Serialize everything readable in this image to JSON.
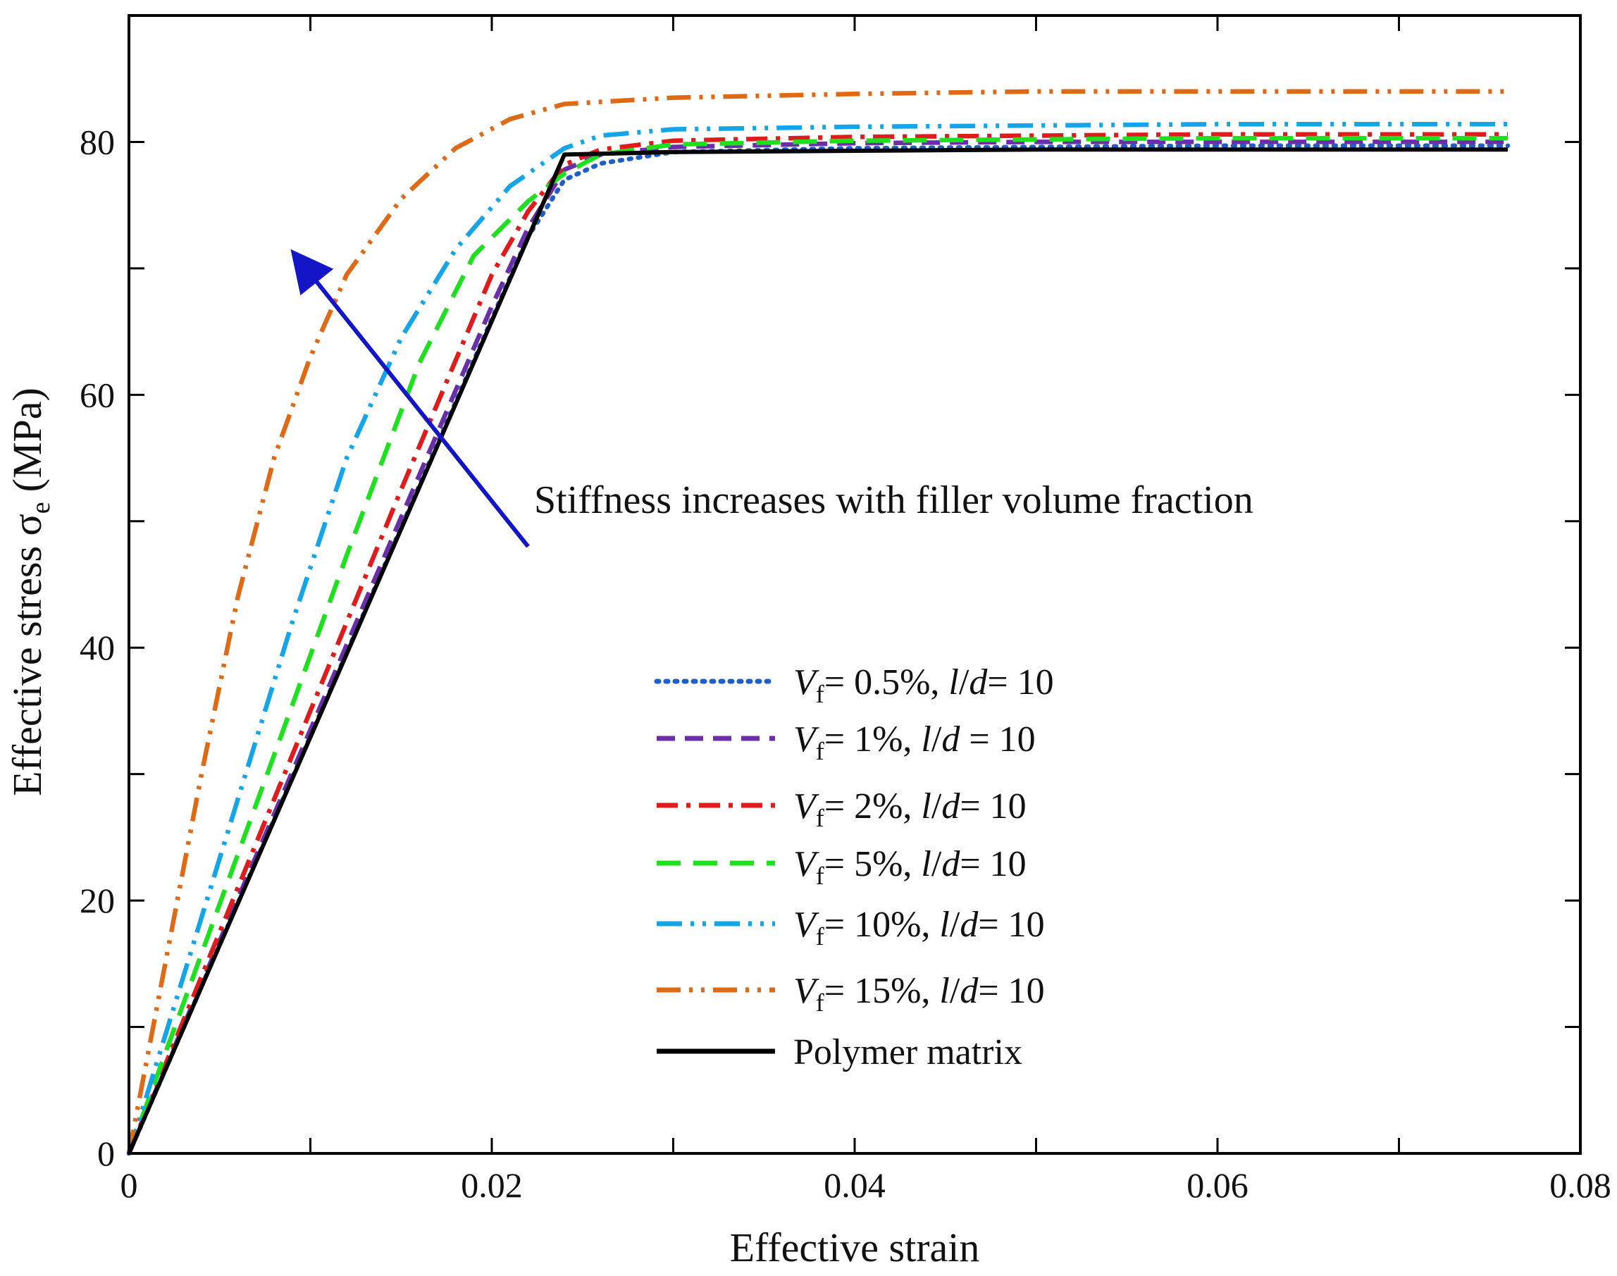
{
  "chart_data": {
    "type": "line",
    "title": "",
    "xlabel": "Effective strain",
    "ylabel_main": "Effective stress σ",
    "ylabel_sub": "e",
    "ylabel_unit": "(MPa)",
    "xlim": [
      0,
      0.08
    ],
    "ylim": [
      0,
      90
    ],
    "xticks": [
      0,
      0.02,
      0.04,
      0.06,
      0.08
    ],
    "xtick_labels": [
      "0",
      "0.02",
      "0.04",
      "0.06",
      "0.08"
    ],
    "yticks": [
      0,
      20,
      40,
      60,
      80
    ],
    "ytick_labels": [
      "0",
      "20",
      "40",
      "60",
      "80"
    ],
    "minor_xticks": [
      0.01,
      0.03,
      0.05,
      0.07
    ],
    "minor_yticks": [
      10,
      30,
      50,
      70
    ],
    "annotation": {
      "text": "Stiffness increases with filler volume fraction",
      "arrow_from": [
        0.022,
        48
      ],
      "arrow_to": [
        0.0092,
        71
      ],
      "arrow_color": "#1515c8"
    },
    "legend_position": "lower-right",
    "series": [
      {
        "name": "Vf= 0.5%, l/d= 10",
        "label_v": "V",
        "label_sub": "f",
        "label_mid": "= 0.5%, ",
        "label_l": "l",
        "label_slash": "/",
        "label_d": "d",
        "label_end": "= 10",
        "color": "#1f5fc4",
        "dash": "3 10",
        "linecap": "round",
        "x": [
          0,
          0.005,
          0.01,
          0.015,
          0.02,
          0.022,
          0.024,
          0.026,
          0.03,
          0.04,
          0.05,
          0.06,
          0.07,
          0.076
        ],
        "y": [
          0,
          16.5,
          33,
          49.5,
          66,
          72.5,
          77,
          78.3,
          79.2,
          79.5,
          79.6,
          79.7,
          79.7,
          79.7
        ]
      },
      {
        "name": "Vf= 1%, l/d = 10",
        "label_v": "V",
        "label_sub": "f",
        "label_mid": "= 1%, ",
        "label_l": "l",
        "label_slash": "/",
        "label_d": "d",
        "label_end": " = 10",
        "color": "#6a2ea8",
        "dash": "26 14",
        "linecap": "butt",
        "x": [
          0,
          0.005,
          0.01,
          0.015,
          0.02,
          0.022,
          0.024,
          0.026,
          0.03,
          0.04,
          0.05,
          0.06,
          0.07,
          0.076
        ],
        "y": [
          0,
          16.8,
          33.5,
          50.3,
          67,
          73.2,
          77.8,
          79,
          79.6,
          79.9,
          80,
          80,
          80,
          80
        ]
      },
      {
        "name": "Vf= 2%, l/d= 10",
        "label_v": "V",
        "label_sub": "f",
        "label_mid": "= 2%, ",
        "label_l": "l",
        "label_slash": "/",
        "label_d": "d",
        "label_end": "= 10",
        "color": "#e01b1b",
        "dash": "30 12 6 12",
        "linecap": "butt",
        "x": [
          0,
          0.005,
          0.01,
          0.015,
          0.02,
          0.022,
          0.024,
          0.026,
          0.03,
          0.04,
          0.05,
          0.06,
          0.07,
          0.076
        ],
        "y": [
          0,
          17.5,
          35,
          52.5,
          69.5,
          74.5,
          78.2,
          79.4,
          80.1,
          80.4,
          80.5,
          80.6,
          80.6,
          80.6
        ]
      },
      {
        "name": "Vf= 5%, l/d= 10",
        "label_v": "V",
        "label_sub": "f",
        "label_mid": "= 5%, ",
        "label_l": "l",
        "label_slash": "/",
        "label_d": "d",
        "label_end": "= 10",
        "color": "#1ee01e",
        "dash": "34 18",
        "linecap": "butt",
        "x": [
          0,
          0.004,
          0.008,
          0.012,
          0.016,
          0.019,
          0.022,
          0.024,
          0.026,
          0.03,
          0.04,
          0.05,
          0.06,
          0.07,
          0.076
        ],
        "y": [
          0,
          15.8,
          31.5,
          47.3,
          62.5,
          71,
          75.3,
          77.5,
          79,
          79.8,
          80.1,
          80.2,
          80.3,
          80.3,
          80.3
        ]
      },
      {
        "name": "Vf= 10%, l/d= 10",
        "label_v": "V",
        "label_sub": "f",
        "label_mid": "= 10%, ",
        "label_l": "l",
        "label_slash": "/",
        "label_d": "d",
        "label_end": "= 10",
        "color": "#13a5e8",
        "dash": "36 12 5 12 5 12",
        "linecap": "butt",
        "x": [
          0,
          0.003,
          0.006,
          0.009,
          0.012,
          0.015,
          0.018,
          0.021,
          0.024,
          0.026,
          0.03,
          0.04,
          0.05,
          0.06,
          0.07,
          0.076
        ],
        "y": [
          0,
          14,
          28,
          42,
          55,
          64.5,
          71.5,
          76.5,
          79.5,
          80.5,
          81,
          81.2,
          81.3,
          81.4,
          81.4,
          81.4
        ]
      },
      {
        "name": "Vf= 15%, l/d= 10",
        "label_v": "V",
        "label_sub": "f",
        "label_mid": "= 15%, ",
        "label_l": "l",
        "label_slash": "/",
        "label_d": "d",
        "label_end": "= 10",
        "color": "#df6a16",
        "dash": "34 12 5 12 5 12",
        "linecap": "butt",
        "x": [
          0,
          0.002,
          0.004,
          0.006,
          0.008,
          0.01,
          0.012,
          0.015,
          0.018,
          0.021,
          0.024,
          0.03,
          0.04,
          0.05,
          0.06,
          0.07,
          0.076
        ],
        "y": [
          0,
          15,
          30,
          44,
          55,
          63,
          69.5,
          75.5,
          79.5,
          81.8,
          83,
          83.5,
          83.8,
          84,
          84,
          84,
          84
        ]
      },
      {
        "name": "Polymer matrix",
        "label_v": "",
        "label_sub": "",
        "label_mid": "",
        "label_l": "",
        "label_slash": "",
        "label_d": "",
        "label_end": "",
        "label_plain": "Polymer matrix",
        "color": "#000000",
        "dash": "",
        "linecap": "butt",
        "x": [
          0,
          0.024,
          0.03,
          0.04,
          0.05,
          0.06,
          0.07,
          0.076
        ],
        "y": [
          0,
          79,
          79.2,
          79.3,
          79.4,
          79.4,
          79.4,
          79.4
        ]
      }
    ]
  }
}
